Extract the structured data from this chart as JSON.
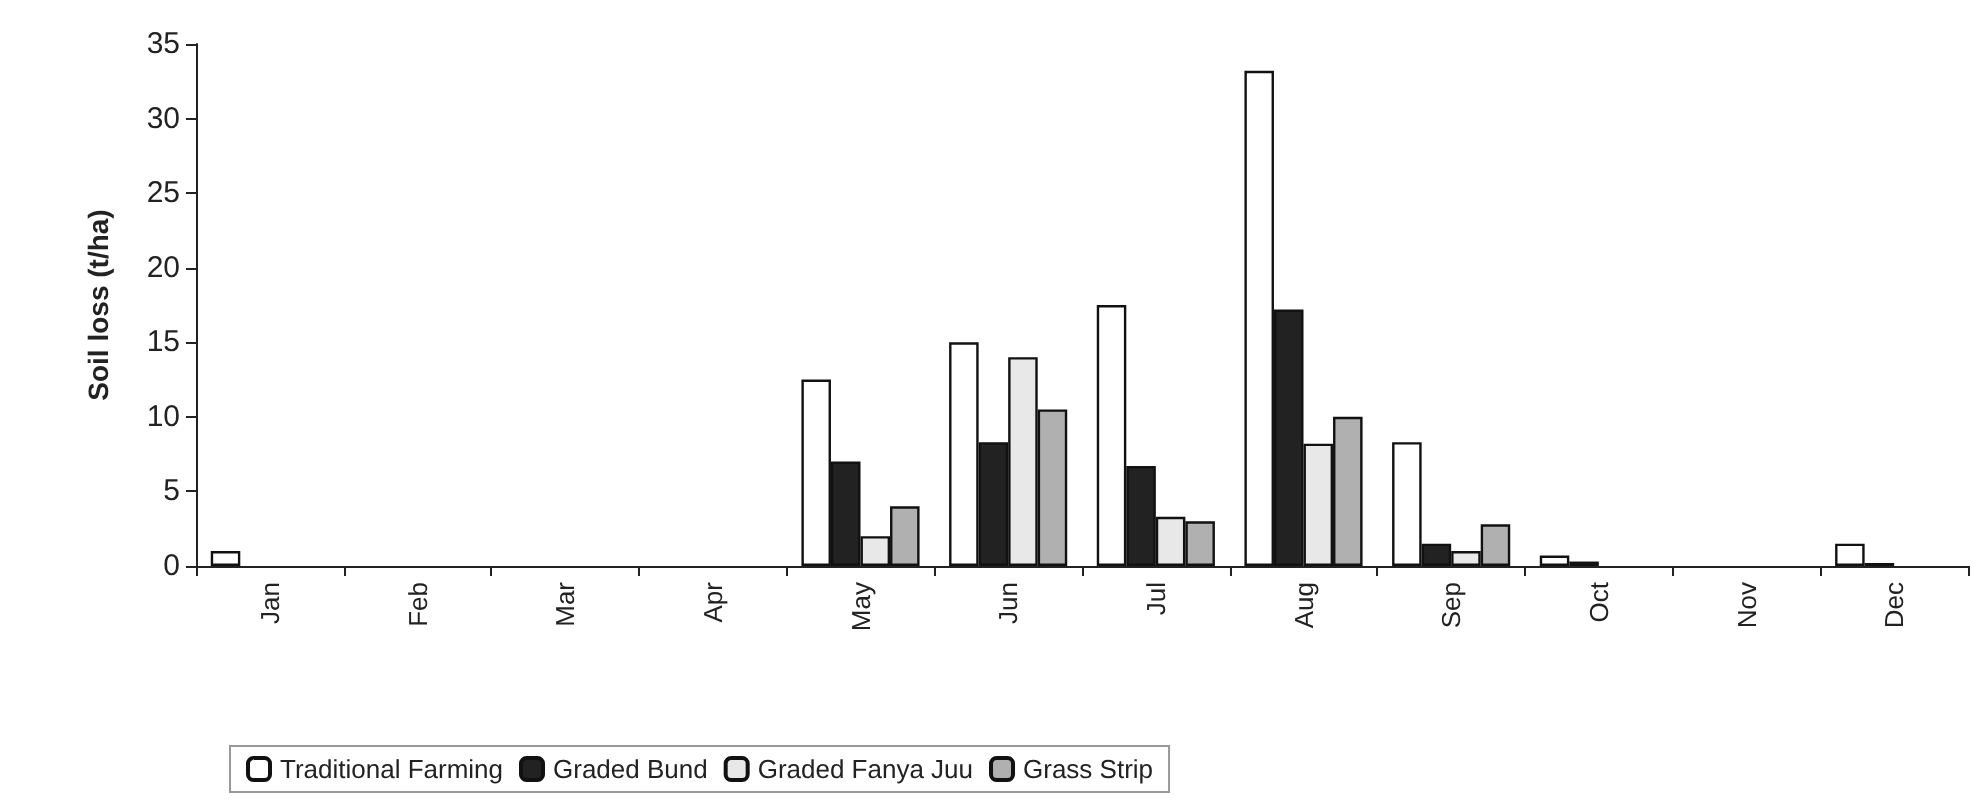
{
  "chart_data": {
    "type": "bar",
    "ylabel": "Soil loss (t/ha)",
    "categories": [
      "Jan",
      "Feb",
      "Mar",
      "Apr",
      "May",
      "Jun",
      "Jul",
      "Aug",
      "Sep",
      "Oct",
      "Nov",
      "Dec"
    ],
    "series": [
      {
        "name": "Traditional Farming",
        "color": "#ffffff",
        "values": [
          1,
          0,
          0,
          0,
          12.5,
          15,
          17.5,
          33.2,
          8.3,
          0.7,
          0,
          1.5
        ]
      },
      {
        "name": "Graded Bund",
        "color": "#222222",
        "values": [
          0,
          0,
          0,
          0,
          7,
          8.3,
          6.7,
          17.2,
          1.5,
          0.3,
          0,
          0.2
        ]
      },
      {
        "name": "Graded Fanya Juu",
        "color": "#e8e8e8",
        "values": [
          0,
          0,
          0,
          0,
          2,
          14,
          3.3,
          8.2,
          1,
          null,
          0,
          0
        ]
      },
      {
        "name": "Grass Strip",
        "color": "#b0b0b0",
        "values": [
          0,
          0,
          0,
          0,
          4,
          10.5,
          3,
          10,
          2.8,
          0,
          0,
          0
        ]
      }
    ],
    "ylim": [
      0,
      35
    ],
    "yticks": [
      0,
      5,
      10,
      15,
      20,
      25,
      30,
      35
    ],
    "grid": false,
    "legend": "bottom"
  }
}
